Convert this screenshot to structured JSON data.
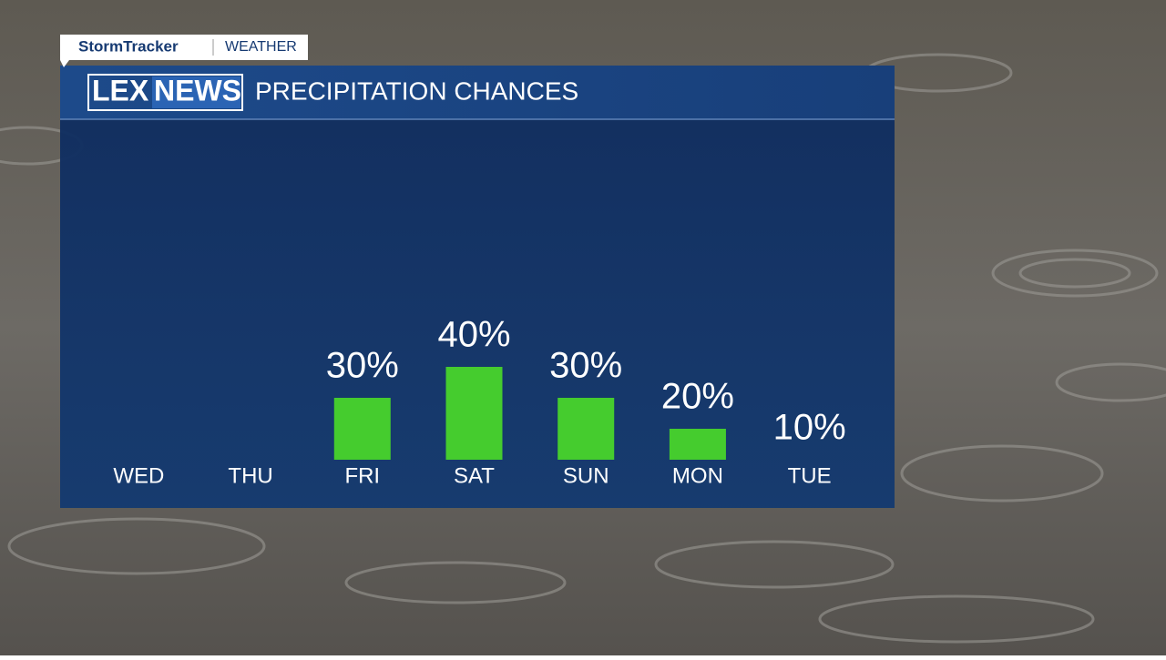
{
  "brand": "StormTracker",
  "section": "WEATHER",
  "logo": {
    "left": "LEX",
    "right": "NEWS"
  },
  "chart_data": {
    "type": "bar",
    "title": "PRECIPITATION CHANCES",
    "categories": [
      "WED",
      "THU",
      "FRI",
      "SAT",
      "SUN",
      "MON",
      "TUE"
    ],
    "values": [
      null,
      null,
      30,
      40,
      30,
      20,
      10
    ],
    "value_labels": [
      null,
      null,
      "30%",
      "40%",
      "30%",
      "20%",
      "10%"
    ],
    "color": "#45cc2e",
    "ylim": [
      10,
      40
    ]
  }
}
